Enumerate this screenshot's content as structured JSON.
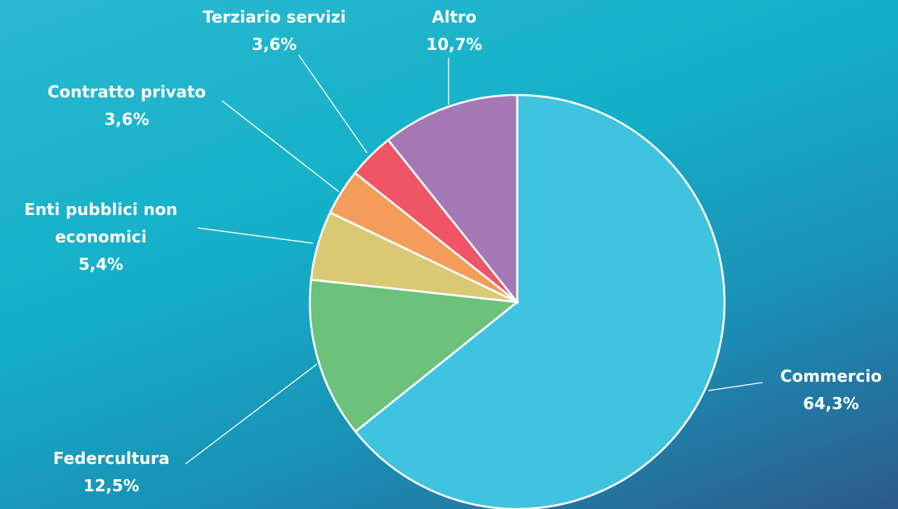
{
  "chart_data": {
    "type": "pie",
    "categories": [
      "Commercio",
      "Federcultura",
      "Enti pubblici non economici",
      "Contratto privato",
      "Terziario servizi",
      "Altro"
    ],
    "values": [
      64.3,
      12.5,
      5.4,
      3.6,
      3.6,
      10.7
    ],
    "value_labels": [
      "64,3%",
      "12,5%",
      "5,4%",
      "3,6%",
      "3,6%",
      "10,7%"
    ],
    "colors": [
      "#3fc3de",
      "#6cc17b",
      "#d9c972",
      "#f49d5b",
      "#ef5565",
      "#a478b4"
    ]
  }
}
